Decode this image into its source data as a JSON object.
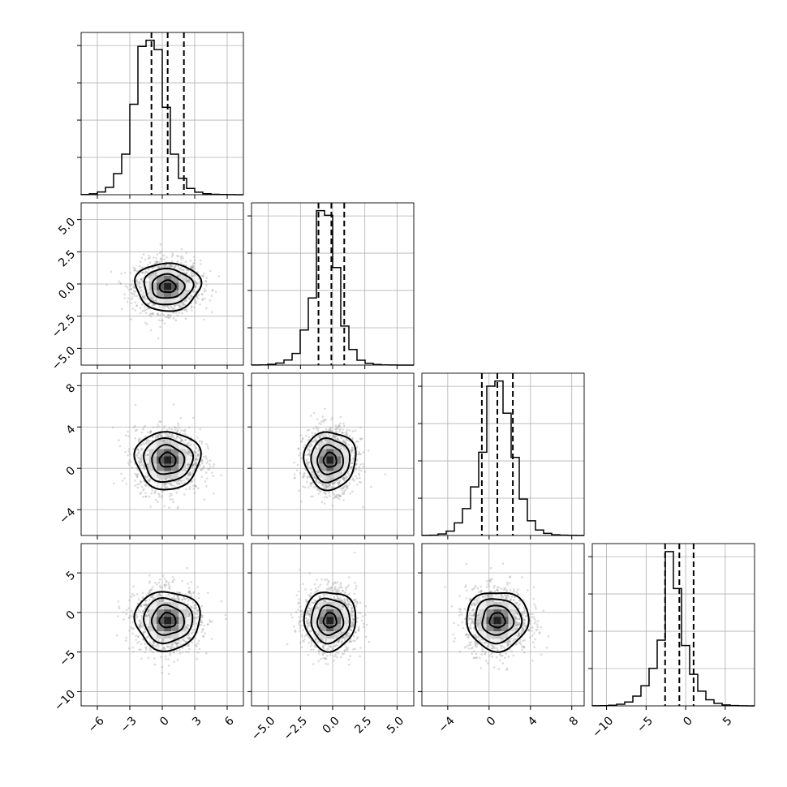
{
  "chart_data": {
    "type": "corner",
    "n_parameters": 4,
    "grid": true,
    "parameters": [
      {
        "index": 0,
        "range": [
          -7.5,
          7.5
        ],
        "ticks": [
          -6,
          -3,
          0,
          3,
          6
        ],
        "tick_labels": [
          "−6",
          "−3",
          "0",
          "3",
          "6"
        ],
        "mean": 0.5,
        "sigma": 1.5,
        "quantiles": [
          -1.0,
          0.5,
          2.0
        ]
      },
      {
        "index": 1,
        "range": [
          -6.3,
          6.3
        ],
        "ticks": [
          -5.0,
          -2.5,
          0.0,
          2.5,
          5.0
        ],
        "tick_labels": [
          "−5.0",
          "−2.5",
          "0.0",
          "2.5",
          "5.0"
        ],
        "mean": -0.2,
        "sigma": 1.0,
        "quantiles": [
          -1.1,
          -0.1,
          0.9
        ]
      },
      {
        "index": 2,
        "range": [
          -6.5,
          9.2
        ],
        "ticks": [
          -4,
          0,
          4,
          8
        ],
        "tick_labels": [
          "−4",
          "0",
          "4",
          "8"
        ],
        "mean": 0.8,
        "sigma": 1.5,
        "quantiles": [
          -0.7,
          0.8,
          2.3
        ]
      },
      {
        "index": 3,
        "range": [
          -11.8,
          8.7
        ],
        "ticks": [
          -10,
          -5,
          0,
          5
        ],
        "tick_labels": [
          "−10",
          "−5",
          "0",
          "5"
        ],
        "mean": -1.0,
        "sigma": 2.0,
        "quantiles": [
          -2.6,
          -0.8,
          1.0
        ]
      }
    ],
    "histograms": [
      {
        "param": 0,
        "bins": 20,
        "counts": [
          3,
          12,
          35,
          95,
          270,
          520,
          1160,
          1900,
          1980,
          1860,
          1120,
          520,
          210,
          80,
          33,
          13,
          5,
          2,
          1,
          0
        ],
        "ylim": [
          0,
          2080
        ]
      },
      {
        "param": 1,
        "bins": 20,
        "counts": [
          1,
          3,
          10,
          26,
          65,
          150,
          450,
          860,
          1980,
          1920,
          1250,
          500,
          200,
          62,
          24,
          8,
          3,
          1,
          0,
          0
        ],
        "ylim": [
          0,
          2080
        ]
      },
      {
        "param": 2,
        "bins": 20,
        "counts": [
          1,
          4,
          18,
          50,
          145,
          310,
          560,
          960,
          1720,
          1780,
          1410,
          900,
          420,
          170,
          63,
          24,
          8,
          3,
          1,
          0
        ],
        "ylim": [
          0,
          1870
        ]
      },
      {
        "param": 3,
        "bins": 20,
        "counts": [
          1,
          3,
          9,
          24,
          58,
          145,
          300,
          560,
          980,
          2300,
          1750,
          900,
          470,
          220,
          90,
          38,
          14,
          5,
          2,
          0
        ],
        "ylim": [
          0,
          2420
        ]
      }
    ],
    "pairs": [
      {
        "x_param": 0,
        "y_param": 1,
        "center": [
          0.5,
          -0.2
        ],
        "spread": [
          1.5,
          1.0
        ]
      },
      {
        "x_param": 0,
        "y_param": 2,
        "center": [
          0.5,
          0.8
        ],
        "spread": [
          1.5,
          1.5
        ]
      },
      {
        "x_param": 1,
        "y_param": 2,
        "center": [
          -0.2,
          0.8
        ],
        "spread": [
          1.0,
          1.5
        ]
      },
      {
        "x_param": 0,
        "y_param": 3,
        "center": [
          0.5,
          -1.0
        ],
        "spread": [
          1.5,
          2.0
        ]
      },
      {
        "x_param": 1,
        "y_param": 3,
        "center": [
          -0.2,
          -1.0
        ],
        "spread": [
          1.0,
          2.0
        ]
      },
      {
        "x_param": 2,
        "y_param": 3,
        "center": [
          0.8,
          -1.0
        ],
        "spread": [
          1.5,
          2.0
        ]
      }
    ],
    "contour_levels_sigma": [
      0.5,
      1.0,
      1.5,
      2.0
    ]
  }
}
